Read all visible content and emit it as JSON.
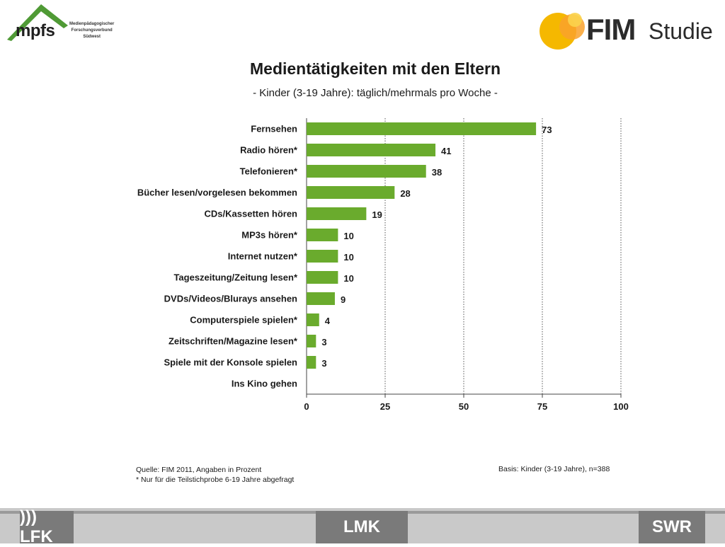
{
  "logos": {
    "mpfs_word": "mpfs",
    "mpfs_sub1": "Medienpädagogischer",
    "mpfs_sub2": "Forschungsverbund",
    "mpfs_sub3": "Südwest",
    "fim_word": "FIM",
    "fim_studie": "Studie",
    "lfk": "))) LFK",
    "lmk": "LMK",
    "swr": "SWR"
  },
  "footer": {
    "source": "Quelle: FIM 2011, Angaben in Prozent",
    "note": "* Nur für die Teilstichprobe 6-19 Jahre abgefragt",
    "basis": "Basis: Kinder (3-19 Jahre), n=388"
  },
  "colors": {
    "bar": "#6aab2d",
    "accent_logo_yellow": "#f5b800",
    "accent_logo_green": "#4f9a35"
  },
  "chart_data": {
    "type": "bar",
    "orientation": "horizontal",
    "title": "Medientätigkeiten mit den Eltern",
    "subtitle": "- Kinder (3-19 Jahre): täglich/mehrmals pro Woche -",
    "categories": [
      "Fernsehen",
      "Radio hören*",
      "Telefonieren*",
      "Bücher lesen/vorgelesen bekommen",
      "CDs/Kassetten hören",
      "MP3s hören*",
      "Internet nutzen*",
      "Tageszeitung/Zeitung lesen*",
      "DVDs/Videos/Blurays ansehen",
      "Computerspiele spielen*",
      "Zeitschriften/Magazine lesen*",
      "Spiele mit der Konsole spielen",
      "Ins Kino gehen"
    ],
    "values": [
      73,
      41,
      38,
      28,
      19,
      10,
      10,
      10,
      9,
      4,
      3,
      3,
      null
    ],
    "data_labels": [
      "73",
      "41",
      "38",
      "28",
      "19",
      "10",
      "10",
      "10",
      "9",
      "4",
      "3",
      "3",
      ""
    ],
    "xlim": [
      0,
      100
    ],
    "xticks": [
      0,
      25,
      50,
      75,
      100
    ],
    "grid": "vertical dotted at 25, 50, 75, 100"
  }
}
